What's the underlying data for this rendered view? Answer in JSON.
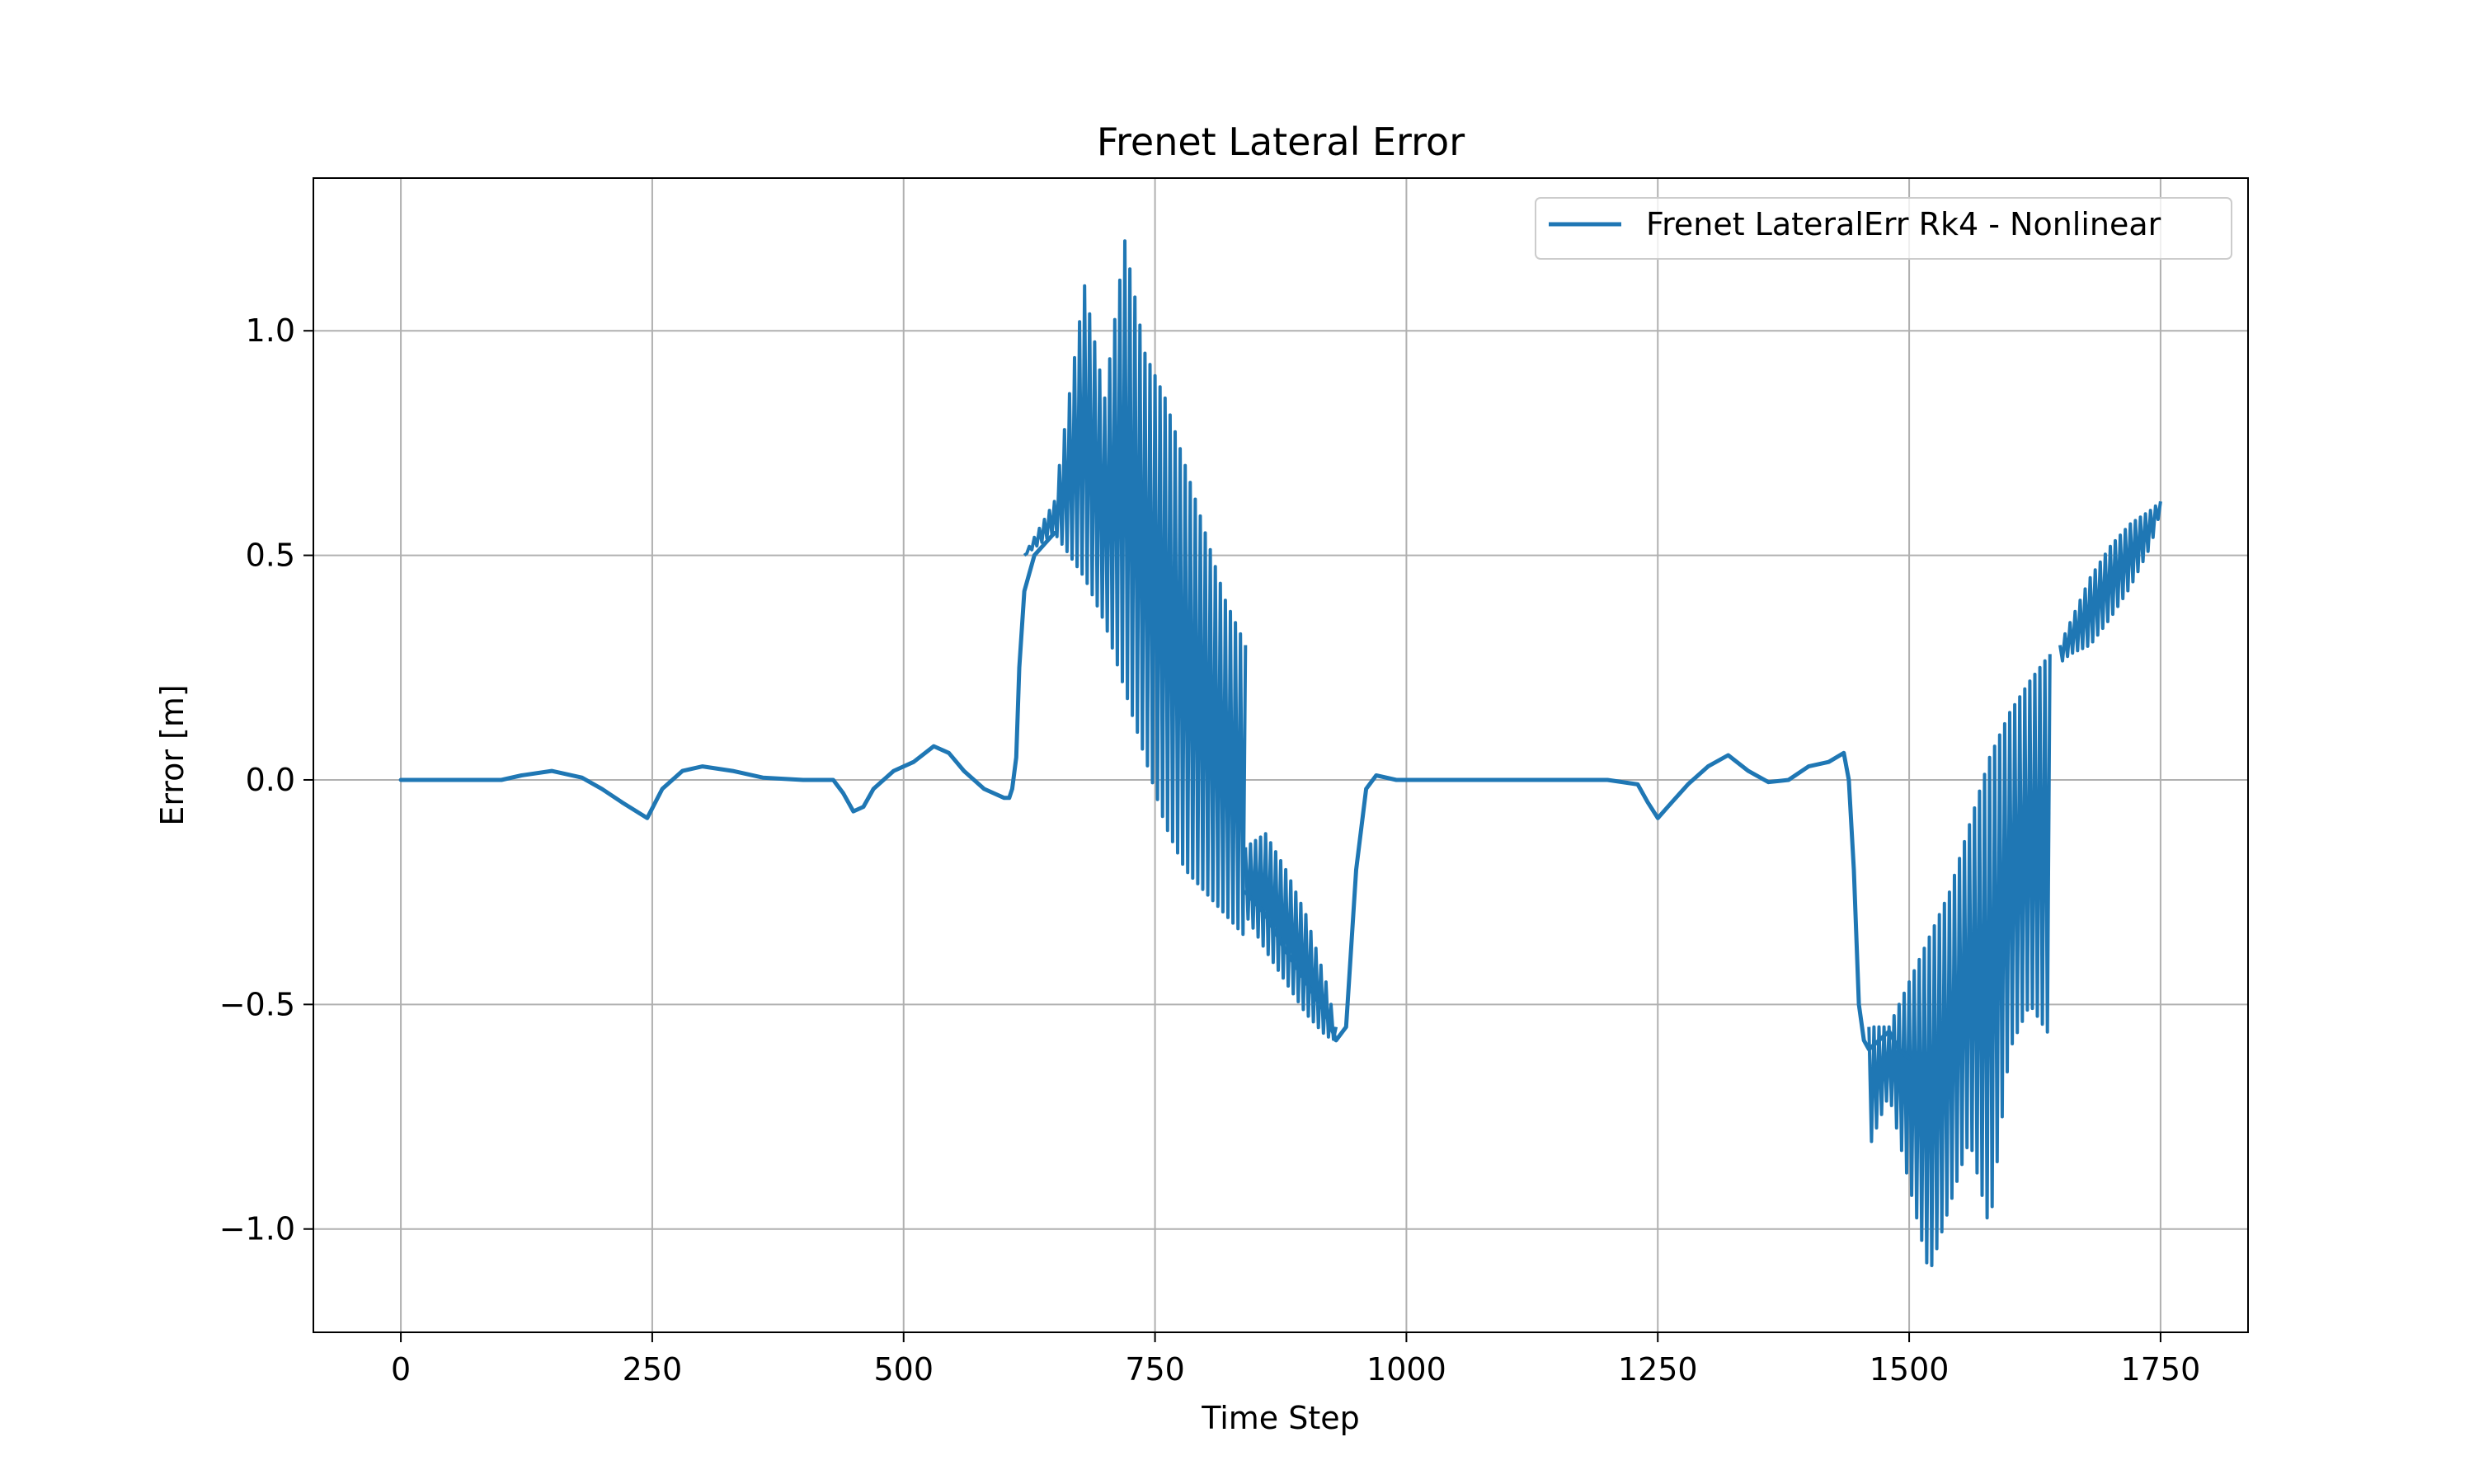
{
  "chart_data": {
    "type": "line",
    "title": "Frenet Lateral Error",
    "xlabel": "Time Step",
    "ylabel": "Error [m]",
    "xlim": [
      -87,
      1837
    ],
    "ylim": [
      -1.23,
      1.34
    ],
    "xticks": [
      0,
      250,
      500,
      750,
      1000,
      1250,
      1500,
      1750
    ],
    "xtick_labels": [
      "0",
      "250",
      "500",
      "750",
      "1000",
      "1250",
      "1500",
      "1750"
    ],
    "yticks": [
      -1.0,
      -0.5,
      0.0,
      0.5,
      1.0
    ],
    "ytick_labels": [
      "−1.0",
      "−0.5",
      "0.0",
      "0.5",
      "1.0"
    ],
    "grid": true,
    "legend_position": "top-right",
    "series": [
      {
        "name": "Frenet LateralErr Rk4 - Nonlinear",
        "color": "#1f77b4",
        "segments": [
          {
            "x": [
              0,
              100,
              120,
              150,
              180,
              200,
              220,
              245,
              260,
              280,
              300,
              330,
              360,
              400,
              430,
              440,
              450,
              460,
              470,
              490,
              510,
              530,
              545,
              560,
              580,
              600,
              605,
              608,
              612,
              615,
              620,
              630,
              650
            ],
            "y": [
              0,
              0,
              0.01,
              0.02,
              0.005,
              -0.02,
              -0.05,
              -0.085,
              -0.02,
              0.02,
              0.03,
              0.02,
              0.005,
              0,
              0,
              -0.03,
              -0.07,
              -0.06,
              -0.02,
              0.02,
              0.04,
              0.075,
              0.06,
              0.02,
              -0.02,
              -0.04,
              -0.04,
              -0.02,
              0.05,
              0.25,
              0.42,
              0.5,
              0.55
            ]
          },
          {
            "x": [
              840,
              860,
              880,
              900,
              920,
              930,
              940,
              950,
              960,
              970,
              990,
              1000,
              1050,
              1100,
              1150,
              1200,
              1230,
              1240,
              1250,
              1260,
              1280,
              1300,
              1320,
              1340,
              1360,
              1380,
              1400,
              1420,
              1435,
              1440,
              1445,
              1450,
              1455,
              1460,
              1480,
              1490,
              1500
            ],
            "y": [
              -0.25,
              -0.3,
              -0.38,
              -0.45,
              -0.52,
              -0.58,
              -0.55,
              -0.2,
              -0.02,
              0.01,
              0,
              0,
              0,
              0,
              0,
              0,
              -0.01,
              -0.05,
              -0.085,
              -0.06,
              -0.01,
              0.03,
              0.055,
              0.02,
              -0.005,
              0,
              0.03,
              0.04,
              0.06,
              0,
              -0.2,
              -0.5,
              -0.58,
              -0.6,
              -0.56,
              -0.6,
              -0.62
            ]
          }
        ],
        "oscillation_bands": [
          {
            "x": [
              620,
              650,
              680,
              700,
              720,
              740,
              760,
              780,
              800,
              820,
              840
            ],
            "upper": [
              0.5,
              0.62,
              1.1,
              0.85,
              1.2,
              0.95,
              0.85,
              0.7,
              0.55,
              0.4,
              0.3
            ],
            "lower": [
              0.5,
              0.55,
              0.45,
              0.35,
              0.2,
              0.05,
              -0.1,
              -0.2,
              -0.25,
              -0.3,
              -0.35
            ]
          },
          {
            "x": [
              840,
              860,
              880,
              900,
              920,
              930
            ],
            "upper": [
              -0.15,
              -0.12,
              -0.2,
              -0.3,
              -0.45,
              -0.55
            ],
            "lower": [
              -0.3,
              -0.38,
              -0.45,
              -0.52,
              -0.57,
              -0.58
            ]
          },
          {
            "x": [
              1460,
              1480,
              1500,
              1520,
              1540,
              1560,
              1580,
              1600,
              1620,
              1640
            ],
            "upper": [
              -0.55,
              -0.55,
              -0.45,
              -0.35,
              -0.25,
              -0.1,
              0.05,
              0.15,
              0.22,
              0.28
            ],
            "lower": [
              -0.82,
              -0.7,
              -0.9,
              -1.1,
              -0.95,
              -0.8,
              -1.0,
              -0.6,
              -0.5,
              -0.57
            ]
          },
          {
            "x": [
              1650,
              1660,
              1680,
              1700,
              1720,
              1740,
              1750
            ],
            "upper": [
              0.3,
              0.35,
              0.45,
              0.52,
              0.57,
              0.6,
              0.62
            ],
            "lower": [
              0.26,
              0.28,
              0.3,
              0.36,
              0.43,
              0.52,
              0.6
            ]
          }
        ]
      }
    ]
  }
}
